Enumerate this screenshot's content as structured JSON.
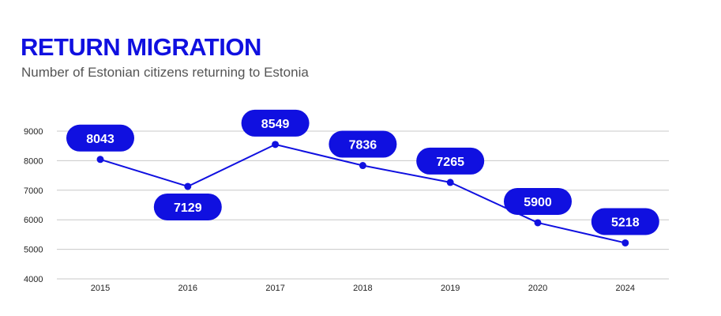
{
  "title": "RETURN MIGRATION",
  "subtitle": "Number of Estonian citizens returning to Estonia",
  "colors": {
    "accent": "#1010e0",
    "grid": "#c8c8c8",
    "label_text": "#ffffff"
  },
  "chart_data": {
    "type": "line",
    "title": "RETURN MIGRATION",
    "subtitle": "Number of Estonian citizens returning to Estonia",
    "xlabel": "",
    "ylabel": "",
    "categories": [
      "2015",
      "2016",
      "2017",
      "2018",
      "2019",
      "2020",
      "2024"
    ],
    "values": [
      8043,
      7129,
      8549,
      7836,
      7265,
      5900,
      5218
    ],
    "label_position": [
      "above",
      "below",
      "above",
      "above",
      "above",
      "above",
      "above"
    ],
    "ylim": [
      4000,
      9000
    ],
    "yticks": [
      4000,
      5000,
      6000,
      7000,
      8000,
      9000
    ],
    "grid": true,
    "legend": "none"
  }
}
